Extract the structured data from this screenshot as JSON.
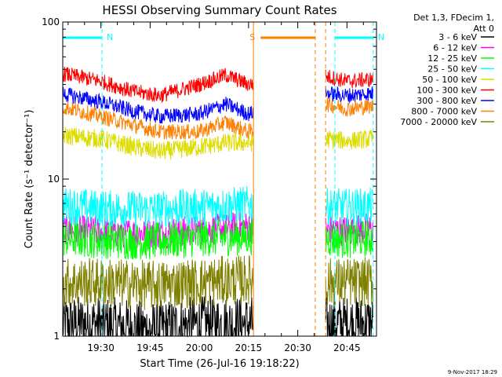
{
  "chart_data": {
    "type": "line",
    "title": "HESSI Observing Summary Count Rates",
    "xlabel": "Start Time (26-Jul-16 19:18:22)",
    "ylabel": "Count Rate (s⁻¹ detector⁻¹)",
    "y_scale": "log",
    "ylim": [
      1,
      100
    ],
    "xlim": [
      "19:18:22",
      "20:54:00"
    ],
    "x_ticks": [
      "19:30",
      "19:45",
      "20:00",
      "20:15",
      "20:30",
      "20:45"
    ],
    "y_ticks": [
      "1",
      "10",
      "100"
    ],
    "grid": false,
    "legend_position": "right",
    "legend_header": [
      "Det 1,3, FDecim 1,",
      "Att 0"
    ],
    "footer": "9-Nov-2017 18:29",
    "gaps": [
      [
        "20:16:30",
        "20:38:30"
      ]
    ],
    "series": [
      {
        "name": "3 - 6 keV",
        "color": "#000000",
        "x": [
          "19:18",
          "19:30",
          "19:45",
          "20:00",
          "20:15",
          "20:39",
          "20:45",
          "20:52"
        ],
        "values": [
          1.2,
          1.2,
          1.1,
          1.2,
          1.2,
          1.2,
          1.2,
          1.2
        ]
      },
      {
        "name": "6 - 12 keV",
        "color": "#ff00ff",
        "x": [
          "19:18",
          "19:30",
          "19:45",
          "20:00",
          "20:15",
          "20:39",
          "20:45",
          "20:52"
        ],
        "values": [
          4.8,
          4.6,
          4.5,
          4.7,
          5.0,
          4.8,
          4.7,
          4.8
        ]
      },
      {
        "name": "12 - 25 keV",
        "color": "#00ff00",
        "x": [
          "19:18",
          "19:30",
          "19:45",
          "20:00",
          "20:15",
          "20:39",
          "20:45",
          "20:52"
        ],
        "values": [
          4.2,
          4.1,
          4.0,
          4.2,
          4.3,
          4.2,
          4.1,
          4.2
        ]
      },
      {
        "name": "25 - 50 keV",
        "color": "#00ffff",
        "x": [
          "19:18",
          "19:30",
          "19:45",
          "20:00",
          "20:15",
          "20:39",
          "20:45",
          "20:52"
        ],
        "values": [
          6.8,
          6.5,
          6.4,
          6.6,
          6.9,
          6.7,
          6.6,
          6.7
        ]
      },
      {
        "name": "50 - 100 keV",
        "color": "#dddd00",
        "x": [
          "19:18",
          "19:30",
          "19:40",
          "19:48",
          "20:00",
          "20:08",
          "20:15",
          "20:39",
          "20:45",
          "20:52"
        ],
        "values": [
          19,
          18,
          16,
          15,
          16,
          17,
          17,
          18,
          17.5,
          18
        ]
      },
      {
        "name": "100 - 300 keV",
        "color": "#ff0000",
        "x": [
          "19:18",
          "19:30",
          "19:40",
          "19:48",
          "20:00",
          "20:08",
          "20:15",
          "20:39",
          "20:45",
          "20:52"
        ],
        "values": [
          47,
          42,
          36,
          34,
          40,
          46,
          40,
          45,
          42,
          43
        ]
      },
      {
        "name": "300 - 800 keV",
        "color": "#0000ff",
        "x": [
          "19:18",
          "19:30",
          "19:40",
          "19:48",
          "20:00",
          "20:08",
          "20:15",
          "20:39",
          "20:45",
          "20:52"
        ],
        "values": [
          35,
          31,
          27,
          25,
          26,
          30,
          26,
          35,
          34,
          35
        ]
      },
      {
        "name": "800 - 7000 keV",
        "color": "#ff8000",
        "x": [
          "19:18",
          "19:30",
          "19:40",
          "19:48",
          "20:00",
          "20:08",
          "20:15",
          "20:39",
          "20:45",
          "20:52"
        ],
        "values": [
          29,
          25,
          22,
          20,
          20,
          23,
          20,
          30,
          28,
          29
        ]
      },
      {
        "name": "7000 - 20000 keV",
        "color": "#808000",
        "x": [
          "19:18",
          "19:30",
          "19:45",
          "20:00",
          "20:15",
          "20:39",
          "20:45",
          "20:52"
        ],
        "values": [
          2.2,
          2.2,
          2.1,
          2.2,
          2.3,
          2.2,
          2.2,
          2.2
        ]
      }
    ],
    "markers": [
      {
        "label": "N",
        "color": "#00ffff",
        "bar": [
          "19:18:22",
          "19:30:20"
        ],
        "lines": [
          "19:30:20"
        ]
      },
      {
        "label": "N",
        "color": "#00ffff",
        "bar": [
          "20:41:20",
          "20:53:00"
        ],
        "lines": [
          "20:41:20",
          "20:53:00"
        ]
      },
      {
        "label": "S",
        "color": "#ff8000",
        "bar": [
          "20:18:40",
          "20:35:20"
        ],
        "lines": [
          "20:16:30",
          "20:35:20",
          "20:38:30"
        ]
      }
    ]
  }
}
